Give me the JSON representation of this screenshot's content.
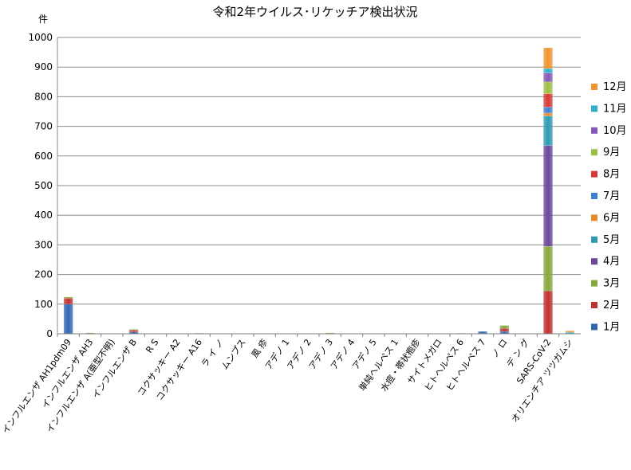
{
  "chart_data": {
    "type": "bar",
    "stacked": true,
    "title": "令和2年ウイルス･リケッチア検出状況",
    "ylabel": "件",
    "xlabel": "",
    "ylim": [
      0,
      1000
    ],
    "yticks": [
      0,
      100,
      200,
      300,
      400,
      500,
      600,
      700,
      800,
      900,
      1000
    ],
    "grid": true,
    "legend_position": "right",
    "categories": [
      "インフルエンザ AH1pdm09",
      "インフルエンザ AH3",
      "インフルエンザ A(亜型不明)",
      "インフルエンザ B",
      "R S",
      "コクサッキー A2",
      "コクサッキー A16",
      "ラ イ ノ",
      "ムンプス",
      "風 疹",
      "アデノ 1",
      "アデノ 2",
      "アデノ 3",
      "アデノ 4",
      "アデノ 5",
      "単純ヘルペス 1",
      "水痘・帯状疱疹",
      "サイトメガロ",
      "ヒトヘルペス 6",
      "ヒトヘルペス 7",
      "ノ ロ",
      "デ ン グ",
      "SARS-CoV-2",
      "オリエンチア ツツガムシ"
    ],
    "series": [
      {
        "name": "1月",
        "color": "#3366b0",
        "values": [
          100,
          1,
          1,
          6,
          1,
          0,
          1,
          0,
          0,
          0,
          0,
          0,
          1,
          0,
          0,
          0,
          0,
          0,
          0,
          8,
          8,
          0,
          0,
          0
        ]
      },
      {
        "name": "2月",
        "color": "#c0312e",
        "values": [
          20,
          1,
          0,
          6,
          0,
          0,
          1,
          0,
          0,
          0,
          0,
          0,
          1,
          0,
          0,
          0,
          0,
          0,
          1,
          0,
          10,
          0,
          145,
          0
        ]
      },
      {
        "name": "3月",
        "color": "#85a83a",
        "values": [
          4,
          1,
          0,
          3,
          0,
          0,
          0,
          0,
          0,
          0,
          0,
          0,
          1,
          0,
          0,
          0,
          0,
          0,
          1,
          0,
          10,
          0,
          150,
          0
        ]
      },
      {
        "name": "4月",
        "color": "#6a479b",
        "values": [
          0,
          0,
          0,
          0,
          0,
          0,
          0,
          0,
          0,
          0,
          0,
          0,
          0,
          0,
          0,
          0,
          0,
          0,
          0,
          0,
          0,
          0,
          340,
          0
        ]
      },
      {
        "name": "5月",
        "color": "#2d9bb3",
        "values": [
          0,
          0,
          0,
          0,
          0,
          0,
          0,
          0,
          0,
          0,
          0,
          0,
          0,
          0,
          0,
          0,
          0,
          0,
          0,
          0,
          0,
          0,
          100,
          0
        ]
      },
      {
        "name": "6月",
        "color": "#e8862a",
        "values": [
          0,
          0,
          0,
          0,
          0,
          0,
          0,
          0,
          0,
          0,
          0,
          0,
          0,
          0,
          0,
          0,
          0,
          0,
          0,
          0,
          0,
          0,
          10,
          0
        ]
      },
      {
        "name": "7月",
        "color": "#3f7fd0",
        "values": [
          0,
          0,
          0,
          0,
          0,
          0,
          0,
          0,
          0,
          0,
          0,
          0,
          0,
          0,
          0,
          0,
          0,
          0,
          0,
          0,
          0,
          0,
          20,
          0
        ]
      },
      {
        "name": "8月",
        "color": "#d93838",
        "values": [
          0,
          0,
          0,
          0,
          0,
          0,
          0,
          0,
          0,
          0,
          0,
          0,
          0,
          0,
          0,
          0,
          0,
          0,
          0,
          0,
          0,
          0,
          45,
          0
        ]
      },
      {
        "name": "9月",
        "color": "#9cbf45",
        "values": [
          0,
          0,
          0,
          0,
          0,
          0,
          0,
          0,
          0,
          0,
          0,
          0,
          0,
          0,
          0,
          0,
          0,
          0,
          0,
          0,
          0,
          0,
          40,
          0
        ]
      },
      {
        "name": "10月",
        "color": "#8557b8",
        "values": [
          0,
          0,
          0,
          0,
          0,
          0,
          0,
          0,
          0,
          0,
          0,
          0,
          0,
          0,
          0,
          0,
          0,
          0,
          0,
          0,
          0,
          0,
          30,
          0
        ]
      },
      {
        "name": "11月",
        "color": "#31aecb",
        "values": [
          0,
          0,
          0,
          0,
          0,
          0,
          0,
          0,
          0,
          0,
          0,
          0,
          0,
          0,
          0,
          0,
          0,
          0,
          0,
          0,
          0,
          0,
          15,
          5
        ]
      },
      {
        "name": "12月",
        "color": "#f09330",
        "values": [
          0,
          0,
          0,
          0,
          0,
          0,
          0,
          0,
          0,
          0,
          0,
          0,
          0,
          0,
          0,
          0,
          0,
          0,
          0,
          0,
          0,
          0,
          70,
          5
        ]
      }
    ]
  }
}
